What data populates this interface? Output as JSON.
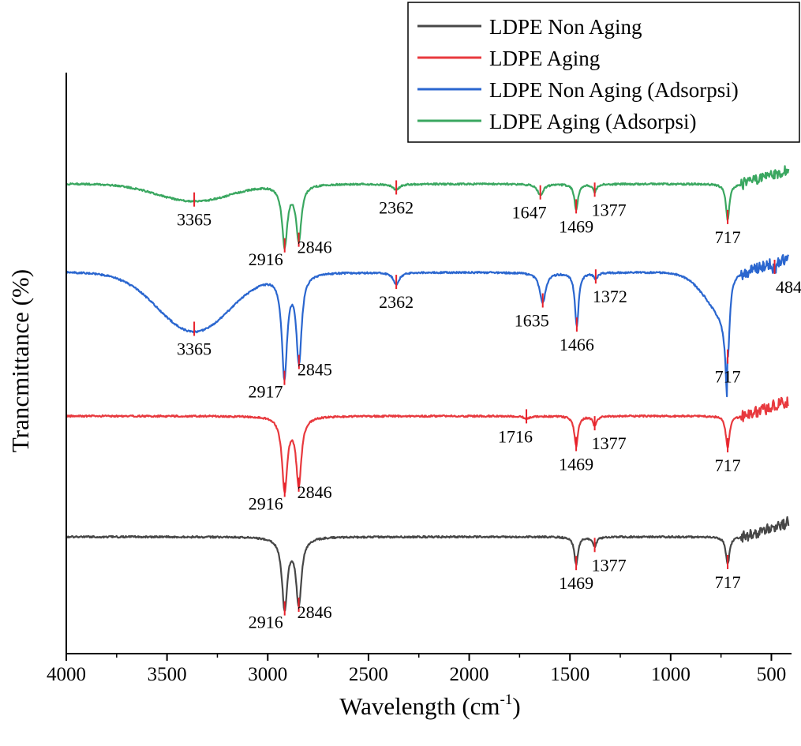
{
  "chart_data": {
    "type": "line",
    "xlabel": "Wavelength (cm",
    "xlabel_sup": "-1",
    "xlabel_suffix": ")",
    "ylabel": "Trancmittance (%)",
    "xlim": [
      4000,
      400
    ],
    "x_ticks": [
      4000,
      3500,
      3000,
      2500,
      2000,
      1500,
      1000,
      500
    ],
    "x_tick_labels": [
      "4000",
      "3500",
      "3000",
      "2500",
      "2000",
      "1500",
      "1000",
      "500"
    ],
    "legend": {
      "placement": "top-right",
      "entries": [
        "LDPE Non Aging",
        "LDPE Aging",
        "LDPE Non Aging (Adsorpsi)",
        "LDPE Aging (Adsorpsi)"
      ]
    },
    "marker_color": "#e8202a",
    "series": [
      {
        "name": "LDPE Non Aging",
        "color": "#474747",
        "baseline": 680,
        "peaks": [
          [
            2916,
            90
          ],
          [
            2846,
            85
          ],
          [
            1469,
            35
          ],
          [
            1377,
            12
          ],
          [
            717,
            35
          ]
        ],
        "labels": [
          "2916",
          "2846",
          "1469",
          "1377",
          "717"
        ]
      },
      {
        "name": "LDPE Aging",
        "color": "#e8393e",
        "baseline": 527,
        "peaks": [
          [
            2916,
            93
          ],
          [
            2846,
            85
          ],
          [
            1716,
            3
          ],
          [
            1469,
            38
          ],
          [
            1377,
            12
          ],
          [
            717,
            40
          ]
        ],
        "labels": [
          "2916",
          "2846",
          "1716",
          "1469",
          "1377",
          "717"
        ]
      },
      {
        "name": "LDPE Non Aging (Adsorpsi)",
        "color": "#2a66cf",
        "baseline": 345,
        "peaks": [
          [
            3365,
            75
          ],
          [
            2917,
            128
          ],
          [
            2845,
            110
          ],
          [
            2362,
            15
          ],
          [
            1635,
            38
          ],
          [
            1466,
            68
          ],
          [
            1372,
            8
          ],
          [
            717,
            110
          ],
          [
            484,
            10
          ]
        ],
        "labels": [
          "3365",
          "2917",
          "2845",
          "2362",
          "1635",
          "1466",
          "1372",
          "717",
          "484"
        ]
      },
      {
        "name": "LDPE Aging (Adsorpsi)",
        "color": "#3aa760",
        "baseline": 233,
        "peaks": [
          [
            3365,
            22
          ],
          [
            2916,
            77
          ],
          [
            2846,
            70
          ],
          [
            2362,
            8
          ],
          [
            1647,
            14
          ],
          [
            1469,
            32
          ],
          [
            1377,
            10
          ],
          [
            717,
            45
          ]
        ],
        "labels": [
          "3365",
          "2916",
          "2846",
          "2362",
          "1647",
          "1469",
          "1377",
          "717"
        ]
      }
    ]
  }
}
